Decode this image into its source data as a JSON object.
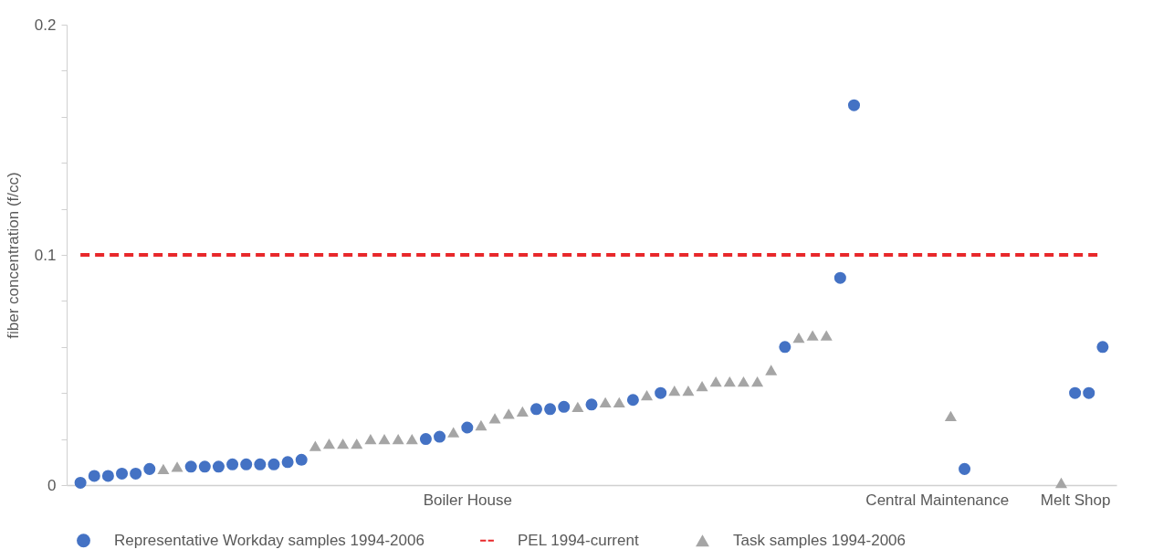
{
  "chart_data": {
    "type": "scatter",
    "ylabel": "fiber concentration (f/cc)",
    "categories": [
      null,
      null,
      null,
      null,
      null,
      null,
      null,
      null,
      null,
      null,
      null,
      null,
      null,
      null,
      null,
      null,
      null,
      null,
      null,
      null,
      null,
      null,
      null,
      null,
      null,
      null,
      null,
      null,
      "Boiler House",
      null,
      null,
      null,
      null,
      null,
      null,
      null,
      null,
      null,
      null,
      null,
      null,
      null,
      null,
      null,
      null,
      null,
      null,
      null,
      null,
      null,
      null,
      null,
      null,
      null,
      null,
      null,
      null,
      null,
      null,
      null,
      null,
      null,
      "Central Maintenance",
      null,
      null,
      null,
      null,
      null,
      null,
      null,
      null,
      null,
      "Melt Shop",
      null,
      null
    ],
    "series": [
      {
        "name": "Representative Workday samples 1994-2006",
        "color": "#4472c4",
        "marker": "circle",
        "values": [
          0.001,
          0.004,
          0.004,
          0.005,
          0.005,
          0.007,
          null,
          null,
          0.008,
          0.008,
          0.008,
          0.009,
          0.009,
          0.009,
          0.009,
          0.01,
          0.011,
          null,
          null,
          null,
          null,
          null,
          null,
          null,
          null,
          0.02,
          0.021,
          null,
          0.025,
          null,
          null,
          null,
          null,
          0.033,
          0.033,
          0.034,
          null,
          0.035,
          null,
          null,
          0.037,
          null,
          0.04,
          null,
          null,
          null,
          null,
          null,
          null,
          null,
          null,
          0.06,
          null,
          null,
          null,
          0.09,
          0.165,
          null,
          null,
          null,
          null,
          null,
          null,
          null,
          0.007,
          null,
          null,
          null,
          null,
          null,
          null,
          null,
          0.04,
          0.04,
          0.06
        ]
      },
      {
        "name": "Task samples 1994-2006",
        "color": "#a5a5a5",
        "marker": "triangle",
        "values": [
          null,
          null,
          null,
          null,
          null,
          null,
          0.007,
          0.008,
          null,
          null,
          null,
          null,
          null,
          null,
          null,
          null,
          null,
          0.017,
          0.018,
          0.018,
          0.018,
          0.02,
          0.02,
          0.02,
          0.02,
          null,
          null,
          0.023,
          null,
          0.026,
          0.029,
          0.031,
          0.032,
          null,
          null,
          null,
          0.034,
          null,
          0.036,
          0.036,
          null,
          0.039,
          null,
          0.041,
          0.041,
          0.043,
          0.045,
          0.045,
          0.045,
          0.045,
          0.05,
          null,
          0.064,
          0.065,
          0.065,
          null,
          null,
          null,
          null,
          null,
          null,
          null,
          null,
          0.03,
          null,
          null,
          null,
          null,
          null,
          null,
          null,
          0.001,
          null,
          null,
          null
        ]
      }
    ],
    "ref_lines": [
      {
        "axis": "y",
        "value": 0.1,
        "label": "PEL 1994-current",
        "color": "#e8282b",
        "line_style": "dashed"
      }
    ],
    "ylim": [
      0,
      0.2
    ],
    "yticks": [
      0,
      {
        "value": 0.02,
        "label": null
      },
      {
        "value": 0.04,
        "label": null
      },
      {
        "value": 0.06,
        "label": null
      },
      {
        "value": 0.08,
        "label": null
      },
      0.1,
      {
        "value": 0.12,
        "label": null
      },
      {
        "value": 0.14,
        "label": null
      },
      {
        "value": 0.16,
        "label": null
      },
      {
        "value": 0.18,
        "label": null
      },
      0.2
    ],
    "legend": "bottom"
  }
}
